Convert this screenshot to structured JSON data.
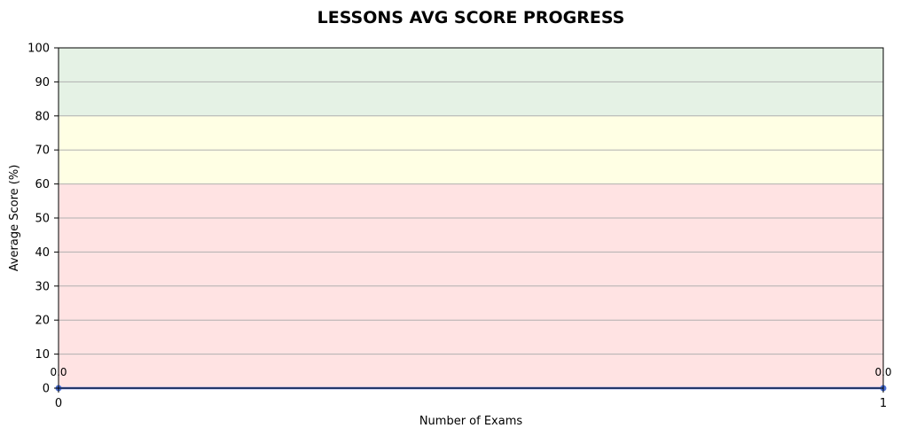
{
  "chart_data": {
    "type": "line",
    "title": "LESSONS AVG SCORE PROGRESS",
    "xlabel": "Number of Exams",
    "ylabel": "Average Score (%)",
    "xlim": [
      0,
      1
    ],
    "ylim": [
      0,
      100
    ],
    "x_ticks": [
      0,
      1
    ],
    "y_ticks": [
      0,
      10,
      20,
      30,
      40,
      50,
      60,
      70,
      80,
      90,
      100
    ],
    "grid": "horizontal",
    "bands": [
      {
        "from": 0,
        "to": 60,
        "color": "#ffe3e3"
      },
      {
        "from": 60,
        "to": 80,
        "color": "#ffffe4"
      },
      {
        "from": 80,
        "to": 100,
        "color": "#e5f2e5"
      }
    ],
    "series": [
      {
        "x": [
          0,
          1
        ],
        "y": [
          0.0,
          0.0
        ],
        "labels": [
          "0.0",
          "0.0"
        ],
        "color": "#4a6fd6"
      }
    ]
  }
}
